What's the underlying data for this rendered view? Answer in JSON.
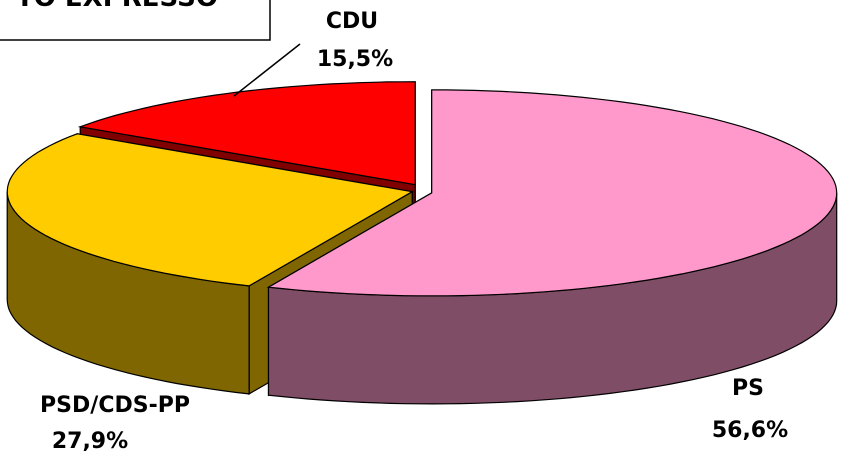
{
  "chart_data": {
    "type": "pie",
    "title": "TO EXPRESSO",
    "categories": [
      "PS",
      "PSD/CDS-PP",
      "CDU"
    ],
    "values": [
      56.6,
      27.9,
      15.5
    ],
    "value_labels": [
      "56,6%",
      "27,9%",
      "15,5%"
    ],
    "colors": [
      "#ff99cc",
      "#ffcc00",
      "#ff0000"
    ]
  }
}
